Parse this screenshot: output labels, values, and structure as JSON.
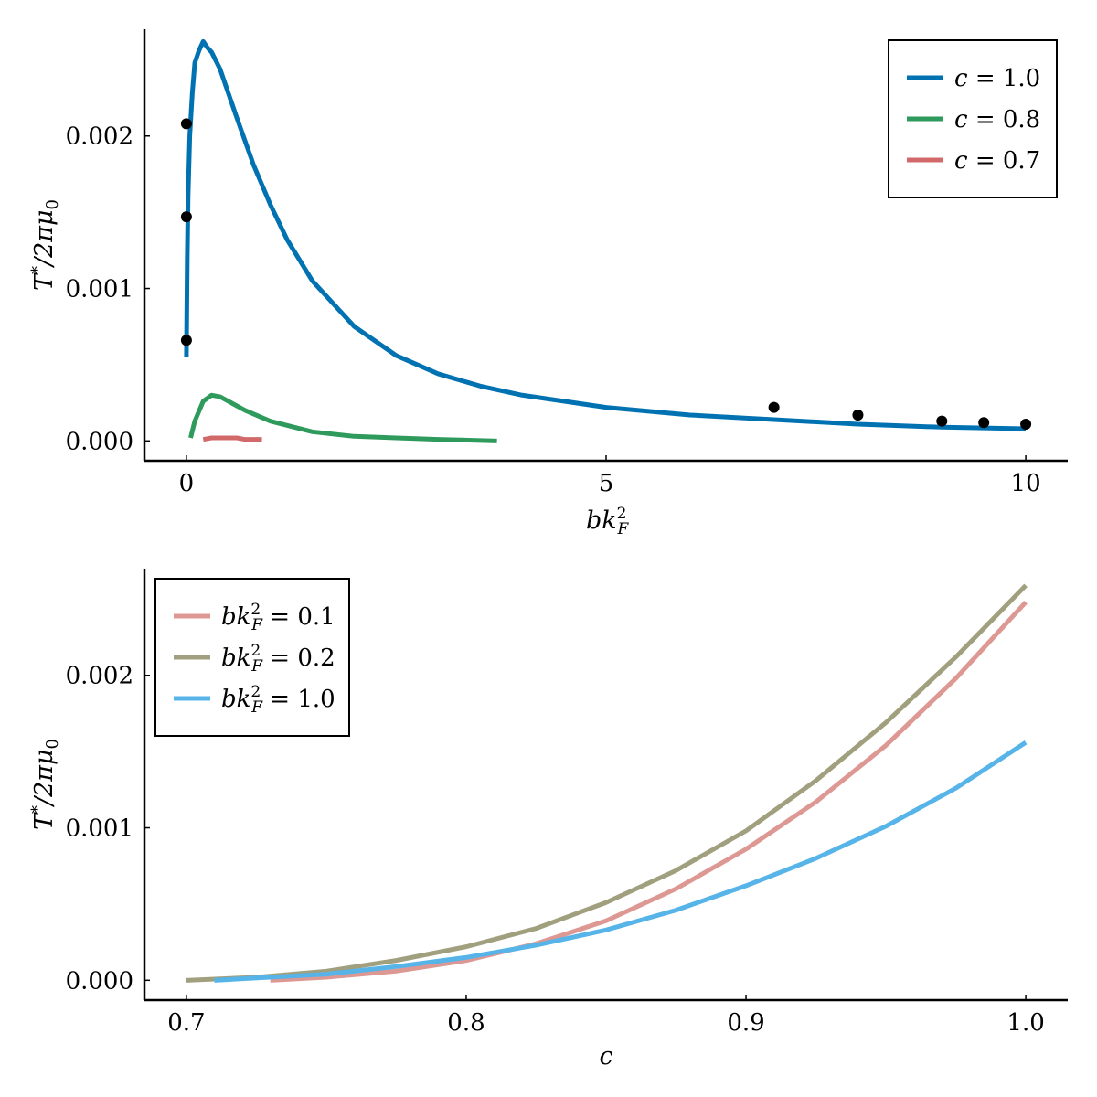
{
  "chart_data": [
    {
      "type": "line",
      "panel": "top",
      "xlabel": "bk_F^2",
      "xlabel_main": "bk",
      "xlabel_sub": "F",
      "xlabel_sup": "2",
      "ylabel": "T*/2πμ₀",
      "xlim": [
        -0.5,
        10.5
      ],
      "ylim": [
        -0.00013,
        0.0027
      ],
      "xticks": [
        0,
        5,
        10
      ],
      "xtick_labels": [
        "0",
        "5",
        "10"
      ],
      "yticks": [
        0.0,
        0.001,
        0.002
      ],
      "ytick_labels": [
        "0.000",
        "0.001",
        "0.002"
      ],
      "legend_position": "top-right",
      "series": [
        {
          "name": "c = 1.0",
          "color": "#0072b2",
          "x": [
            0.0,
            0.01,
            0.02,
            0.04,
            0.07,
            0.1,
            0.15,
            0.2,
            0.25,
            0.3,
            0.4,
            0.5,
            0.6,
            0.8,
            1.0,
            1.2,
            1.5,
            2.0,
            2.5,
            3.0,
            3.5,
            4.0,
            5.0,
            6.0,
            7.0,
            8.0,
            9.0,
            10.0
          ],
          "y": [
            0.00055,
            0.0012,
            0.0016,
            0.002,
            0.00228,
            0.00248,
            0.00256,
            0.00262,
            0.00258,
            0.00255,
            0.00244,
            0.00228,
            0.00212,
            0.00181,
            0.00155,
            0.00132,
            0.00105,
            0.00075,
            0.00056,
            0.00044,
            0.00036,
            0.0003,
            0.00022,
            0.00017,
            0.00014,
            0.00011,
            9e-05,
            8e-05
          ]
        },
        {
          "name": "c = 0.8",
          "color": "#2e9a5c",
          "x": [
            0.05,
            0.1,
            0.2,
            0.3,
            0.4,
            0.5,
            0.7,
            1.0,
            1.5,
            2.0,
            2.5,
            3.0,
            3.7
          ],
          "y": [
            2e-05,
            0.00013,
            0.00026,
            0.0003,
            0.00029,
            0.00026,
            0.0002,
            0.00013,
            6e-05,
            3e-05,
            2e-05,
            1e-05,
            0.0
          ],
          "note": "approximate"
        },
        {
          "name": "c = 0.7",
          "color": "#d1696b",
          "x": [
            0.2,
            0.3,
            0.4,
            0.5,
            0.6,
            0.7,
            0.8,
            0.9
          ],
          "y": [
            1e-05,
            2e-05,
            2e-05,
            2e-05,
            2e-05,
            1e-05,
            1e-05,
            1e-05
          ]
        }
      ],
      "points": {
        "name": "markers",
        "color": "#000000",
        "x": [
          0.0,
          0.0,
          0.0,
          7.0,
          8.0,
          9.0,
          9.5,
          10.0
        ],
        "y": [
          0.00066,
          0.00147,
          0.00208,
          0.00022,
          0.00017,
          0.00013,
          0.00012,
          0.00011
        ]
      }
    },
    {
      "type": "line",
      "panel": "bottom",
      "xlabel": "c",
      "ylabel": "T*/2πμ₀",
      "xlim": [
        0.685,
        1.015
      ],
      "ylim": [
        -0.00013,
        0.0027
      ],
      "xticks": [
        0.7,
        0.8,
        0.9,
        1.0
      ],
      "xtick_labels": [
        "0.7",
        "0.8",
        "0.9",
        "1.0"
      ],
      "yticks": [
        0.0,
        0.001,
        0.002
      ],
      "ytick_labels": [
        "0.000",
        "0.001",
        "0.002"
      ],
      "legend_position": "top-left",
      "series": [
        {
          "name": "bk_F^2 = 0.1",
          "legend_value": "0.1",
          "color": "#dd9894",
          "x": [
            0.73,
            0.75,
            0.775,
            0.8,
            0.825,
            0.85,
            0.875,
            0.9,
            0.925,
            0.95,
            0.975,
            1.0
          ],
          "y": [
            0.0,
            2e-05,
            6e-05,
            0.00013,
            0.00024,
            0.00039,
            0.0006,
            0.00086,
            0.00117,
            0.00154,
            0.00198,
            0.00248
          ]
        },
        {
          "name": "bk_F^2 = 0.2",
          "legend_value": "0.2",
          "color": "#a09f7e",
          "x": [
            0.7,
            0.725,
            0.75,
            0.775,
            0.8,
            0.825,
            0.85,
            0.875,
            0.9,
            0.925,
            0.95,
            0.975,
            1.0
          ],
          "y": [
            0.0,
            2e-05,
            6e-05,
            0.00013,
            0.00022,
            0.00034,
            0.00051,
            0.00072,
            0.00098,
            0.00131,
            0.00169,
            0.00212,
            0.00259
          ]
        },
        {
          "name": "bk_F^2 = 1.0",
          "legend_value": "1.0",
          "color": "#56b4e9",
          "x": [
            0.71,
            0.75,
            0.775,
            0.8,
            0.825,
            0.85,
            0.875,
            0.9,
            0.925,
            0.95,
            0.975,
            1.0
          ],
          "y": [
            0.0,
            4e-05,
            9e-05,
            0.00015,
            0.00023,
            0.00033,
            0.00046,
            0.00062,
            0.0008,
            0.00101,
            0.00126,
            0.00156
          ]
        }
      ]
    }
  ]
}
